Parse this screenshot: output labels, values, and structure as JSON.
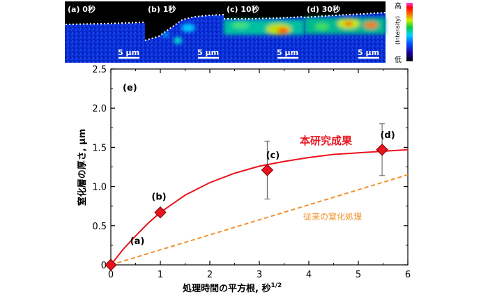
{
  "panels": [
    {
      "label": "(a) 0秒",
      "scale": "5 µm"
    },
    {
      "label": "(b) 1秒",
      "scale": "5 µm"
    },
    {
      "label": "(c) 10秒",
      "scale": "5 µm"
    },
    {
      "label": "(d) 30秒",
      "scale": "5 µm"
    }
  ],
  "colorbar": {
    "high": "高",
    "low": "低",
    "label": "(Intensity)"
  },
  "colors": {
    "research_curve": "#e8141e",
    "conventional_line": "#f0922a",
    "marker": "#e8141e",
    "panel_bg": "#0a2fd6"
  },
  "chart_data": {
    "type": "scatter",
    "panel_label": "(e)",
    "xlabel": "処理時間の平方根, 秒",
    "xlabel_sup": "1/2",
    "ylabel": "窒化層の厚さ, µm",
    "xlim": [
      0,
      6
    ],
    "ylim": [
      0,
      2.5
    ],
    "x_ticks": [
      0,
      1,
      2,
      3,
      4,
      5,
      6
    ],
    "x_tick_labels": [
      "0",
      "1",
      "2",
      "3",
      "4",
      "5",
      "6"
    ],
    "y_ticks": [
      0,
      0.5,
      1,
      1.5,
      2,
      2.5
    ],
    "y_tick_labels": [
      "0",
      "0.5",
      "1.0",
      "1.5",
      "2.0",
      "2.5"
    ],
    "grid": false,
    "points": [
      {
        "label": "(a)",
        "x": 0,
        "y": 0,
        "err": 0
      },
      {
        "label": "(b)",
        "x": 1,
        "y": 0.67,
        "err": 0
      },
      {
        "label": "(c)",
        "x": 3.16,
        "y": 1.21,
        "err": 0.37
      },
      {
        "label": "(d)",
        "x": 5.48,
        "y": 1.47,
        "err": 0.33
      }
    ],
    "series": [
      {
        "name": "本研究成果",
        "style": "solid",
        "x": [
          0,
          0.25,
          0.5,
          0.75,
          1,
          1.5,
          2,
          2.5,
          3,
          3.5,
          4,
          4.5,
          5,
          5.5,
          6
        ],
        "y": [
          0,
          0.2,
          0.37,
          0.53,
          0.67,
          0.89,
          1.05,
          1.17,
          1.26,
          1.32,
          1.37,
          1.41,
          1.43,
          1.45,
          1.47
        ]
      },
      {
        "name": "従来の窒化処理",
        "style": "dashed",
        "x": [
          0,
          6
        ],
        "y": [
          0,
          1.15
        ]
      }
    ]
  }
}
